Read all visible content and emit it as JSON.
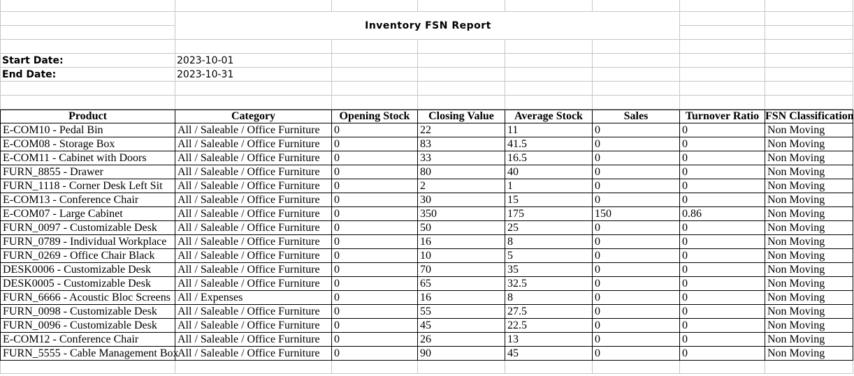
{
  "title": "Inventory FSN Report",
  "filters": {
    "start_label": "Start Date:",
    "start_value": "2023-10-01",
    "end_label": "End Date:",
    "end_value": "2023-10-31"
  },
  "report_table": {
    "columns": [
      "Product",
      "Category",
      "Opening Stock",
      "Closing Value",
      "Average Stock",
      "Sales",
      "Turnover Ratio",
      "FSN Classification"
    ],
    "rows": [
      [
        "E-COM10 - Pedal Bin",
        "All / Saleable / Office Furniture",
        "0",
        "22",
        "11",
        "0",
        "0",
        "Non Moving"
      ],
      [
        "E-COM08 - Storage Box",
        "All / Saleable / Office Furniture",
        "0",
        "83",
        "41.5",
        "0",
        "0",
        "Non Moving"
      ],
      [
        "E-COM11 - Cabinet with Doors",
        "All / Saleable / Office Furniture",
        "0",
        "33",
        "16.5",
        "0",
        "0",
        "Non Moving"
      ],
      [
        "FURN_8855 - Drawer",
        "All / Saleable / Office Furniture",
        "0",
        "80",
        "40",
        "0",
        "0",
        "Non Moving"
      ],
      [
        "FURN_1118 - Corner Desk Left Sit",
        "All / Saleable / Office Furniture",
        "0",
        "2",
        "1",
        "0",
        "0",
        "Non Moving"
      ],
      [
        "E-COM13 - Conference Chair",
        "All / Saleable / Office Furniture",
        "0",
        "30",
        "15",
        "0",
        "0",
        "Non Moving"
      ],
      [
        "E-COM07 - Large Cabinet",
        "All / Saleable / Office Furniture",
        "0",
        "350",
        "175",
        "150",
        "0.86",
        "Non Moving"
      ],
      [
        "FURN_0097 - Customizable Desk",
        "All / Saleable / Office Furniture",
        "0",
        "50",
        "25",
        "0",
        "0",
        "Non Moving"
      ],
      [
        "FURN_0789 - Individual Workplace",
        "All / Saleable / Office Furniture",
        "0",
        "16",
        "8",
        "0",
        "0",
        "Non Moving"
      ],
      [
        "FURN_0269 - Office Chair Black",
        "All / Saleable / Office Furniture",
        "0",
        "10",
        "5",
        "0",
        "0",
        "Non Moving"
      ],
      [
        "DESK0006 - Customizable Desk",
        "All / Saleable / Office Furniture",
        "0",
        "70",
        "35",
        "0",
        "0",
        "Non Moving"
      ],
      [
        "DESK0005 - Customizable Desk",
        "All / Saleable / Office Furniture",
        "0",
        "65",
        "32.5",
        "0",
        "0",
        "Non Moving"
      ],
      [
        "FURN_6666 - Acoustic Bloc Screens",
        "All / Expenses",
        "0",
        "16",
        "8",
        "0",
        "0",
        "Non Moving"
      ],
      [
        "FURN_0098 - Customizable Desk",
        "All / Saleable / Office Furniture",
        "0",
        "55",
        "27.5",
        "0",
        "0",
        "Non Moving"
      ],
      [
        "FURN_0096 - Customizable Desk",
        "All / Saleable / Office Furniture",
        "0",
        "45",
        "22.5",
        "0",
        "0",
        "Non Moving"
      ],
      [
        "E-COM12 - Conference Chair",
        "All / Saleable / Office Furniture",
        "0",
        "26",
        "13",
        "0",
        "0",
        "Non Moving"
      ],
      [
        "FURN_5555 - Cable Management Box",
        "All / Saleable / Office Furniture",
        "0",
        "90",
        "45",
        "0",
        "0",
        "Non Moving"
      ]
    ]
  },
  "colors": {
    "grid_line": "#c6c6c6",
    "table_border": "#000000",
    "text": "#000000",
    "background": "#ffffff"
  }
}
